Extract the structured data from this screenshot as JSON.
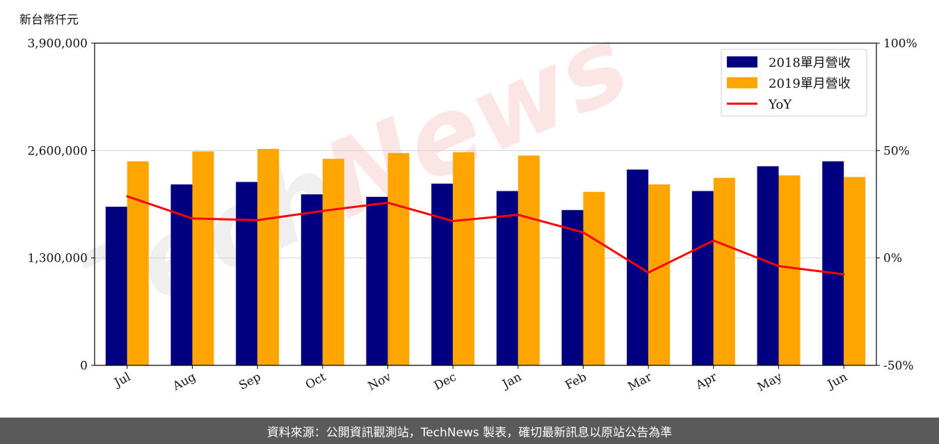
{
  "unit_label": "新台幣仟元",
  "footer_text": "資料來源：公開資訊觀測站，TechNews 製表，確切最新訊息以原站公告為準",
  "watermark": {
    "part1": "Tech",
    "part2": "News"
  },
  "colors": {
    "series2018": "#000080",
    "series2019": "#ffa500",
    "yoy": "#ff0000",
    "grid": "#d0d0d0",
    "axis": "#000000"
  },
  "chart_data": {
    "type": "bar",
    "categories": [
      "Jul",
      "Aug",
      "Sep",
      "Oct",
      "Nov",
      "Dec",
      "Jan",
      "Feb",
      "Mar",
      "Apr",
      "May",
      "Jun"
    ],
    "series": [
      {
        "name": "2018單月營收",
        "type": "bar",
        "axis": "left",
        "values": [
          1920000,
          2190000,
          2220000,
          2070000,
          2040000,
          2200000,
          2110000,
          1880000,
          2370000,
          2110000,
          2410000,
          2470000
        ]
      },
      {
        "name": "2019單月營收",
        "type": "bar",
        "axis": "left",
        "values": [
          2470000,
          2590000,
          2620000,
          2500000,
          2570000,
          2580000,
          2540000,
          2100000,
          2190000,
          2270000,
          2300000,
          2280000
        ]
      },
      {
        "name": "YoY",
        "type": "line",
        "axis": "right",
        "values": [
          28.7,
          18.4,
          17.6,
          21.9,
          25.7,
          17.2,
          20.1,
          11.9,
          -6.8,
          8.1,
          -3.8,
          -7.6
        ]
      }
    ],
    "y_left": {
      "min": 0,
      "max": 3900000,
      "ticks": [
        0,
        1300000,
        2600000,
        3900000
      ],
      "tick_labels": [
        "0",
        "1,300,000",
        "2,600,000",
        "3,900,000"
      ]
    },
    "y_right": {
      "min": -50,
      "max": 100,
      "ticks": [
        -50,
        0,
        50,
        100
      ],
      "tick_labels": [
        "-50%",
        "0%",
        "50%",
        "100%"
      ]
    },
    "grid": "horizontal",
    "legend_position": "top-right"
  }
}
